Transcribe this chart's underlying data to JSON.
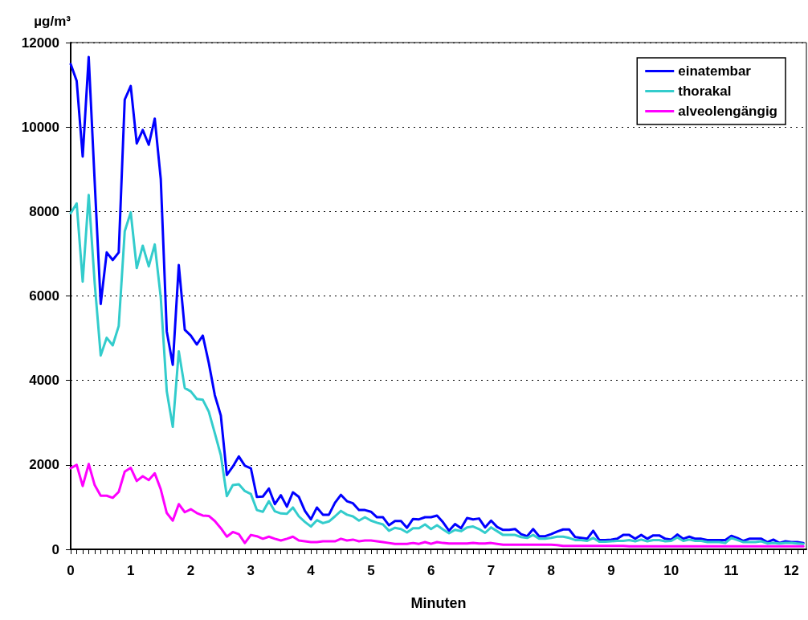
{
  "chart_data": {
    "type": "line",
    "xlabel": "Minuten",
    "ylabel": "µg/m³",
    "x": [
      0,
      0.1,
      0.2,
      0.3,
      0.4,
      0.5,
      0.6,
      0.7,
      0.8,
      0.9,
      1,
      1.1,
      1.2,
      1.3,
      1.4,
      1.5,
      1.6,
      1.7,
      1.8,
      1.9,
      2,
      2.1,
      2.2,
      2.3,
      2.4,
      2.5,
      2.6,
      2.7,
      2.8,
      2.9,
      3,
      3.1,
      3.2,
      3.3,
      3.4,
      3.5,
      3.6,
      3.7,
      3.8,
      3.9,
      4,
      4.1,
      4.2,
      4.3,
      4.4,
      4.5,
      4.6,
      4.7,
      4.8,
      4.9,
      5,
      5.1,
      5.2,
      5.3,
      5.4,
      5.5,
      5.6,
      5.7,
      5.8,
      5.9,
      6,
      6.1,
      6.2,
      6.3,
      6.4,
      6.5,
      6.6,
      6.7,
      6.8,
      6.9,
      7,
      7.1,
      7.2,
      7.3,
      7.4,
      7.5,
      7.6,
      7.7,
      7.8,
      7.9,
      8,
      8.1,
      8.2,
      8.3,
      8.4,
      8.5,
      8.6,
      8.7,
      8.8,
      8.9,
      9,
      9.1,
      9.2,
      9.3,
      9.4,
      9.5,
      9.6,
      9.7,
      9.8,
      9.9,
      10,
      10.1,
      10.2,
      10.3,
      10.4,
      10.5,
      10.6,
      10.7,
      10.8,
      10.9,
      11,
      11.1,
      11.2,
      11.3,
      11.4,
      11.5,
      11.6,
      11.7,
      11.8,
      11.9,
      12,
      12.1,
      12.2
    ],
    "series": [
      {
        "name": "einatembar",
        "color": "#0000ff",
        "values": [
          11490,
          11090,
          9300,
          11660,
          8700,
          5810,
          7030,
          6850,
          7030,
          10650,
          10970,
          9610,
          9930,
          9580,
          10200,
          8770,
          5160,
          4370,
          6730,
          5200,
          5060,
          4850,
          5060,
          4410,
          3650,
          3170,
          1760,
          1960,
          2200,
          1980,
          1920,
          1240,
          1250,
          1440,
          1070,
          1280,
          1010,
          1350,
          1240,
          910,
          710,
          990,
          820,
          820,
          1100,
          1290,
          1140,
          1090,
          930,
          930,
          890,
          760,
          760,
          570,
          670,
          670,
          510,
          720,
          710,
          760,
          760,
          800,
          640,
          440,
          600,
          500,
          740,
          710,
          730,
          520,
          680,
          530,
          460,
          460,
          480,
          360,
          310,
          480,
          310,
          310,
          360,
          420,
          470,
          470,
          290,
          270,
          250,
          440,
          220,
          220,
          230,
          250,
          340,
          340,
          250,
          340,
          250,
          330,
          330,
          250,
          230,
          350,
          250,
          300,
          250,
          250,
          220,
          220,
          220,
          220,
          320,
          270,
          200,
          250,
          250,
          250,
          170,
          230,
          150,
          190,
          170,
          170,
          150
        ]
      },
      {
        "name": "thorakal",
        "color": "#33cccc",
        "values": [
          7960,
          8190,
          6340,
          8390,
          6300,
          4590,
          5010,
          4830,
          5290,
          7530,
          7980,
          6660,
          7190,
          6700,
          7220,
          5960,
          3740,
          2900,
          4690,
          3820,
          3740,
          3560,
          3540,
          3260,
          2750,
          2230,
          1260,
          1520,
          1540,
          1380,
          1310,
          930,
          890,
          1140,
          900,
          850,
          840,
          990,
          780,
          650,
          540,
          690,
          620,
          660,
          780,
          910,
          820,
          780,
          680,
          760,
          680,
          630,
          590,
          440,
          510,
          480,
          400,
          500,
          500,
          590,
          480,
          570,
          470,
          380,
          460,
          430,
          520,
          540,
          480,
          390,
          520,
          430,
          340,
          340,
          340,
          290,
          270,
          340,
          250,
          250,
          270,
          300,
          300,
          270,
          220,
          220,
          200,
          270,
          180,
          180,
          190,
          200,
          200,
          220,
          190,
          230,
          190,
          220,
          220,
          190,
          200,
          280,
          200,
          230,
          200,
          200,
          170,
          170,
          170,
          150,
          270,
          220,
          170,
          170,
          170,
          190,
          140,
          150,
          140,
          150,
          150,
          140,
          130
        ]
      },
      {
        "name": "alveolengängig",
        "color": "#ff00ff",
        "values": [
          1920,
          2000,
          1500,
          2020,
          1520,
          1270,
          1270,
          1220,
          1360,
          1840,
          1930,
          1620,
          1730,
          1640,
          1800,
          1420,
          860,
          680,
          1070,
          880,
          950,
          860,
          800,
          790,
          670,
          500,
          300,
          410,
          360,
          150,
          340,
          310,
          250,
          300,
          250,
          210,
          250,
          300,
          210,
          190,
          170,
          170,
          190,
          190,
          190,
          250,
          210,
          230,
          190,
          210,
          210,
          190,
          170,
          150,
          130,
          130,
          130,
          150,
          130,
          170,
          130,
          170,
          150,
          140,
          140,
          140,
          140,
          150,
          140,
          140,
          150,
          130,
          110,
          110,
          110,
          110,
          110,
          110,
          110,
          110,
          110,
          100,
          80,
          80,
          80,
          80,
          80,
          80,
          80,
          80,
          80,
          80,
          80,
          70,
          70,
          70,
          70,
          70,
          70,
          70,
          70,
          70,
          70,
          70,
          70,
          70,
          70,
          70,
          70,
          70,
          70,
          70,
          70,
          70,
          70,
          70,
          70,
          70,
          70,
          70,
          70,
          70,
          70
        ]
      }
    ],
    "xlim": [
      0,
      12.25
    ],
    "xticks": [
      0,
      1,
      2,
      3,
      4,
      5,
      6,
      7,
      8,
      9,
      10,
      11,
      12
    ],
    "ylim": [
      0,
      12000
    ],
    "yticks": [
      0,
      2000,
      4000,
      6000,
      8000,
      10000,
      12000
    ],
    "grid": "y",
    "legend": "top right",
    "marker": "none",
    "line_style": "solid"
  }
}
